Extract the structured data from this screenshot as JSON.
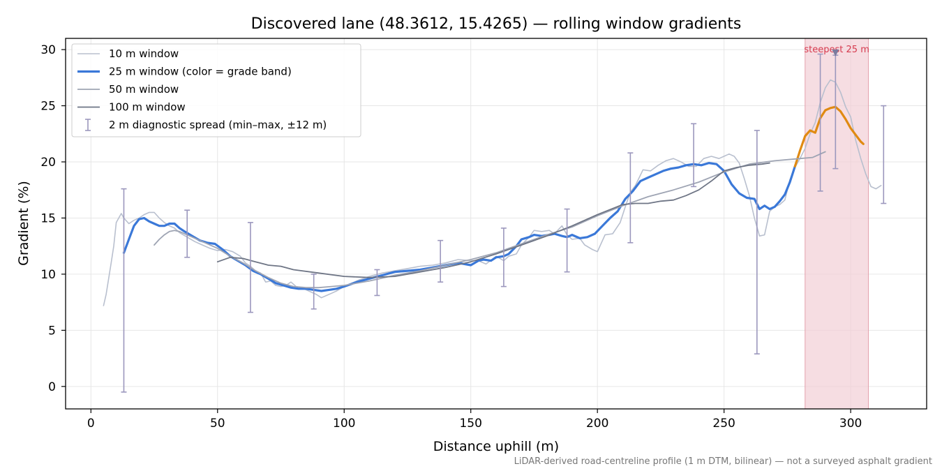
{
  "chart_data": {
    "type": "line",
    "title": "Discovered lane (48.3612, 15.4265) — rolling window gradients",
    "xlabel": "Distance uphill (m)",
    "ylabel": "Gradient (%)",
    "xlim": [
      -10,
      330
    ],
    "ylim": [
      -2,
      31
    ],
    "xticks": [
      0,
      50,
      100,
      150,
      200,
      250,
      300
    ],
    "yticks": [
      0,
      5,
      10,
      15,
      20,
      25,
      30
    ],
    "grid": true,
    "legend_position": "top-left",
    "footnote": "LiDAR-derived road-centreline profile (1 m DTM, bilinear) — not a surveyed asphalt gradient",
    "colors": {
      "w10": "#b8bfce",
      "w25": "#3a78d8",
      "w25_steep": "#e08a12",
      "w50": "#9ea4b3",
      "w100": "#6e7585",
      "errorbar": "#9b97bd",
      "steep_band": "#f2cfd5",
      "steep_label": "#d63a4e"
    },
    "steepest_region": {
      "label": "steepest 25 m",
      "x0": 282,
      "x1": 307,
      "marker": {
        "x": 294,
        "y": 29.7
      }
    },
    "series": [
      {
        "name": "10 m window",
        "style": "thin",
        "x": [
          5,
          6,
          8,
          9,
          10,
          12,
          13,
          15,
          17,
          19,
          21,
          23,
          25,
          27,
          29,
          31,
          33,
          35,
          38,
          41,
          44,
          47,
          50,
          53,
          56,
          59,
          61,
          63,
          65,
          67,
          69,
          71,
          73,
          75,
          77,
          79,
          81,
          83,
          85,
          87,
          89,
          91,
          93,
          95,
          97,
          100,
          103,
          106,
          110,
          115,
          120,
          125,
          130,
          135,
          140,
          145,
          150,
          153,
          156,
          160,
          163,
          165,
          168,
          170,
          173,
          175,
          178,
          181,
          183,
          186,
          188,
          190,
          193,
          195,
          198,
          200,
          203,
          206,
          209,
          211,
          213,
          215,
          218,
          221,
          224,
          227,
          230,
          233,
          236,
          239,
          242,
          245,
          248,
          250,
          252,
          254,
          256,
          258,
          260,
          262,
          264,
          266,
          268,
          270,
          272,
          274,
          276,
          278,
          280,
          282,
          284,
          286,
          288,
          290,
          292,
          294,
          296,
          298,
          300,
          302,
          304,
          306,
          308,
          310,
          312
        ],
        "y": [
          7.2,
          8.2,
          11,
          12.5,
          14.6,
          15.4,
          15,
          14.5,
          14.8,
          15,
          15.3,
          15.5,
          15.5,
          15,
          14.6,
          14.3,
          14.1,
          13.7,
          13.3,
          12.9,
          12.6,
          12.3,
          12.1,
          12.2,
          12,
          11.6,
          11,
          10.7,
          10.3,
          10.1,
          9.3,
          9.4,
          9,
          8.9,
          9,
          9.3,
          8.9,
          8.8,
          8.6,
          8.4,
          8.2,
          7.9,
          8.1,
          8.3,
          8.5,
          8.9,
          9.2,
          9.5,
          9.8,
          10.1,
          10.3,
          10.5,
          10.7,
          10.8,
          11,
          11.3,
          11.2,
          11.2,
          10.9,
          11.6,
          11.2,
          11.6,
          11.8,
          12.6,
          13.3,
          13.9,
          13.8,
          13.9,
          13.6,
          14.3,
          13.5,
          13.1,
          13.2,
          12.6,
          12.2,
          12,
          13.5,
          13.6,
          14.6,
          16,
          17.3,
          17.9,
          19.3,
          19.2,
          19.7,
          20.1,
          20.3,
          20,
          19.6,
          19.6,
          20.3,
          20.5,
          20.3,
          20.5,
          20.7,
          20.5,
          19.9,
          18.5,
          17,
          15,
          13.4,
          13.5,
          15.6,
          16,
          16.2,
          16.6,
          18.4,
          19.5,
          20.3,
          21.2,
          22.5,
          23.5,
          25.3,
          26.6,
          27.3,
          27.1,
          26.2,
          24.9,
          24,
          21.9,
          20.3,
          18.9,
          17.8,
          17.6,
          17.9
        ]
      },
      {
        "name": "25 m window (color = grade band)",
        "style": "bold",
        "x": [
          13,
          15,
          17,
          19,
          21,
          23,
          25,
          27,
          29,
          31,
          33,
          35,
          37,
          40,
          43,
          46,
          49,
          52,
          55,
          58,
          61,
          64,
          67,
          70,
          73,
          76,
          79,
          82,
          85,
          88,
          91,
          94,
          97,
          100,
          105,
          110,
          115,
          120,
          125,
          130,
          135,
          140,
          145,
          150,
          153,
          155,
          158,
          160,
          163,
          165,
          168,
          170,
          173,
          175,
          178,
          181,
          183,
          186,
          188,
          190,
          193,
          196,
          199,
          202,
          205,
          208,
          211,
          214,
          217,
          220,
          223,
          226,
          229,
          232,
          235,
          238,
          241,
          244,
          247,
          250,
          253,
          256,
          259,
          262,
          264,
          266,
          268,
          270,
          272,
          274,
          276,
          278
        ],
        "y": [
          11.9,
          13.1,
          14.3,
          14.9,
          15,
          14.7,
          14.5,
          14.3,
          14.3,
          14.5,
          14.5,
          14.1,
          13.8,
          13.4,
          13,
          12.8,
          12.7,
          12.2,
          11.6,
          11.2,
          10.8,
          10.3,
          10,
          9.6,
          9.2,
          9,
          8.8,
          8.7,
          8.7,
          8.6,
          8.5,
          8.6,
          8.7,
          8.9,
          9.3,
          9.6,
          9.9,
          10.2,
          10.3,
          10.4,
          10.6,
          10.8,
          11,
          10.8,
          11.2,
          11.3,
          11.2,
          11.5,
          11.6,
          11.8,
          12.5,
          13.1,
          13.3,
          13.5,
          13.4,
          13.5,
          13.6,
          13.4,
          13.3,
          13.5,
          13.2,
          13.3,
          13.6,
          14.3,
          15,
          15.6,
          16.7,
          17.4,
          18.3,
          18.6,
          18.9,
          19.2,
          19.4,
          19.5,
          19.7,
          19.8,
          19.7,
          19.9,
          19.8,
          19.2,
          18,
          17.2,
          16.8,
          16.7,
          15.8,
          16.1,
          15.8,
          16,
          16.5,
          17.1,
          18.2,
          19.6
        ]
      },
      {
        "name": "25 m (steepest band)",
        "style": "bold-orange",
        "x": [
          278,
          280,
          282,
          284,
          286,
          288,
          290,
          292,
          294,
          296,
          298,
          300,
          302,
          304,
          305
        ],
        "y": [
          19.6,
          21,
          22.3,
          22.8,
          22.6,
          23.9,
          24.6,
          24.8,
          24.9,
          24.5,
          23.8,
          23,
          22.4,
          21.8,
          21.6
        ]
      },
      {
        "name": "50 m window",
        "style": "mid",
        "x": [
          25,
          27,
          29,
          31,
          33,
          35,
          38,
          41,
          44,
          47,
          50,
          55,
          60,
          65,
          70,
          75,
          80,
          85,
          90,
          95,
          100,
          110,
          120,
          130,
          140,
          150,
          160,
          170,
          180,
          190,
          200,
          210,
          220,
          230,
          240,
          250,
          260,
          270,
          280,
          285,
          290
        ],
        "y": [
          12.6,
          13.1,
          13.5,
          13.8,
          13.9,
          13.8,
          13.5,
          13.2,
          12.9,
          12.6,
          12.3,
          11.6,
          11,
          10.3,
          9.7,
          9.2,
          8.9,
          8.8,
          8.8,
          8.9,
          9,
          9.4,
          9.9,
          10.3,
          10.8,
          11.3,
          11.9,
          12.7,
          13.5,
          14.2,
          15.2,
          16.1,
          16.9,
          17.5,
          18.2,
          19.1,
          19.8,
          20.1,
          20.3,
          20.4,
          20.9
        ]
      },
      {
        "name": "100 m window",
        "style": "dark",
        "x": [
          50,
          55,
          60,
          65,
          70,
          75,
          80,
          90,
          100,
          110,
          120,
          130,
          140,
          150,
          160,
          170,
          180,
          190,
          200,
          210,
          215,
          220,
          225,
          230,
          235,
          240,
          245,
          250,
          255,
          260,
          265,
          268
        ],
        "y": [
          11.1,
          11.5,
          11.4,
          11.1,
          10.8,
          10.7,
          10.4,
          10.1,
          9.8,
          9.7,
          9.8,
          10.2,
          10.6,
          11.1,
          11.8,
          12.6,
          13.4,
          14.3,
          15.3,
          16.2,
          16.3,
          16.3,
          16.5,
          16.6,
          17,
          17.5,
          18.3,
          19.2,
          19.5,
          19.7,
          19.8,
          19.9
        ]
      }
    ],
    "errorbar_series": {
      "name": "2 m diagnostic spread (min–max, ±12 m)",
      "points": [
        {
          "x": 13,
          "low": -0.5,
          "high": 17.6
        },
        {
          "x": 38,
          "low": 11.5,
          "high": 15.7
        },
        {
          "x": 63,
          "low": 6.6,
          "high": 14.6
        },
        {
          "x": 88,
          "low": 6.9,
          "high": 10
        },
        {
          "x": 113,
          "low": 8.1,
          "high": 10.4
        },
        {
          "x": 138,
          "low": 9.3,
          "high": 13
        },
        {
          "x": 163,
          "low": 8.9,
          "high": 14.1
        },
        {
          "x": 188,
          "low": 10.2,
          "high": 15.8
        },
        {
          "x": 213,
          "low": 12.8,
          "high": 20.8
        },
        {
          "x": 238,
          "low": 17.8,
          "high": 23.4
        },
        {
          "x": 263,
          "low": 2.9,
          "high": 22.8
        },
        {
          "x": 288,
          "low": 17.4,
          "high": 29.6
        },
        {
          "x": 294,
          "low": 19.4,
          "high": 29.5
        },
        {
          "x": 313,
          "low": 16.3,
          "high": 25
        }
      ]
    }
  }
}
